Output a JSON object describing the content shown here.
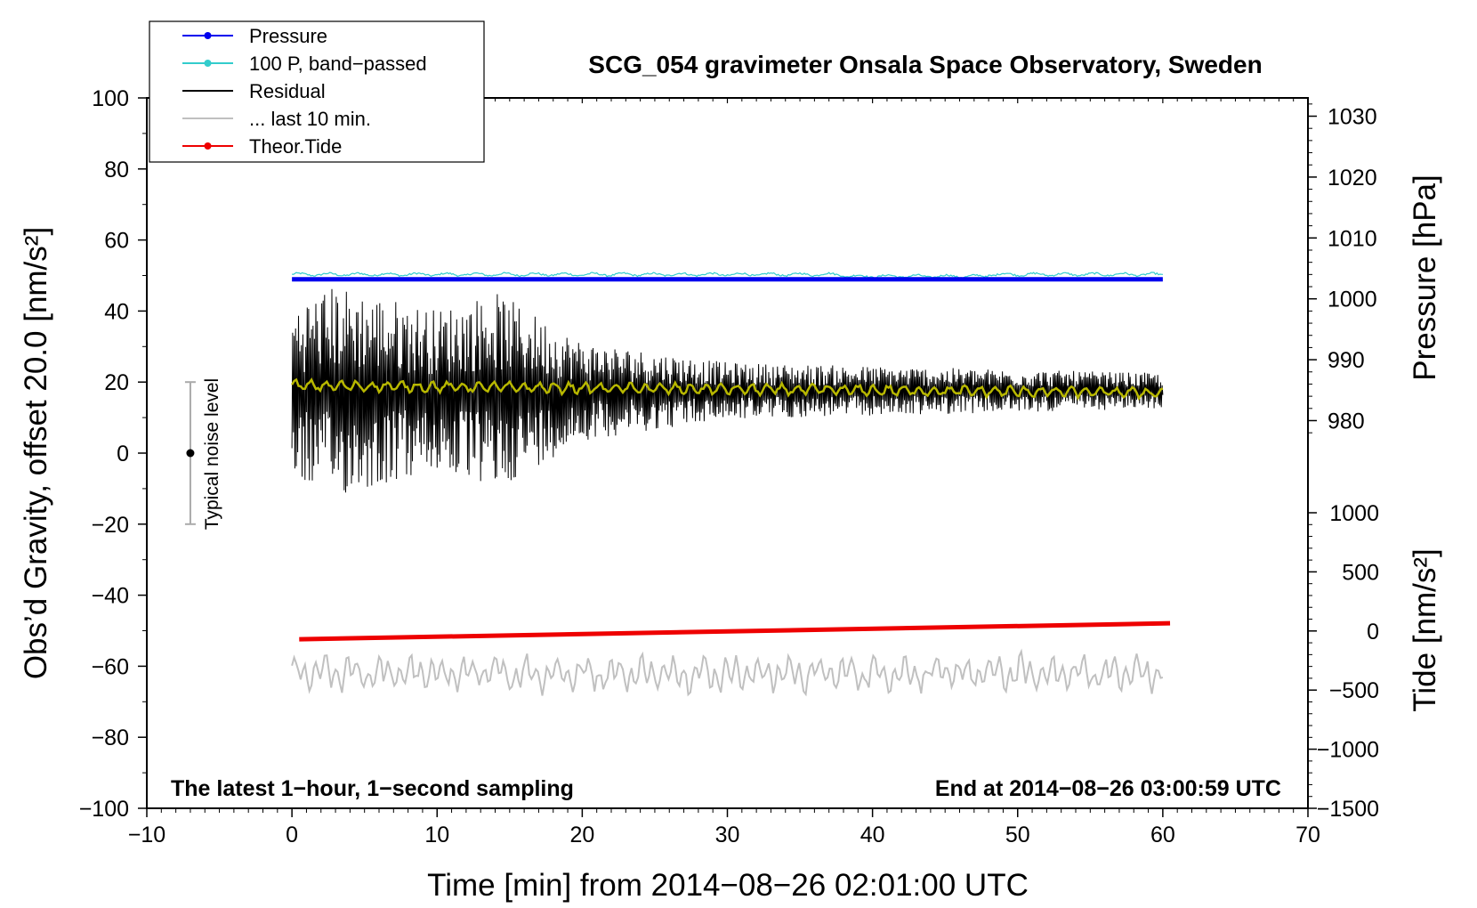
{
  "chart_data": {
    "type": "line",
    "title": "SCG_054 gravimeter Onsala Space Observatory, Sweden",
    "xlabel": "Time [min] from 2014−08−26 02:01:00 UTC",
    "ylabel_left": "Obs’d Gravity, offset 20.0 [nm/s²]",
    "ylabel_pressure": "Pressure [hPa]",
    "ylabel_tide": "Tide [nm/s²]",
    "xlim": [
      -10,
      70
    ],
    "ylim": [
      -100,
      100
    ],
    "pressure_axis_range": [
      977,
      1033
    ],
    "tide_axis_range": [
      -1500,
      1000
    ],
    "x_ticks": [
      "−10",
      "0",
      "10",
      "20",
      "30",
      "40",
      "50",
      "60",
      "70"
    ],
    "y_ticks": [
      "100",
      "80",
      "60",
      "40",
      "20",
      "0",
      "−20",
      "−40",
      "−60",
      "−80",
      "−100"
    ],
    "pressure_ticks": [
      "1030",
      "1020",
      "1010",
      "1000",
      "990",
      "980"
    ],
    "tide_ticks": [
      "1000",
      "500",
      "0",
      "−500",
      "−1000",
      "−1500"
    ],
    "note_left": "The latest 1−hour, 1−second sampling",
    "note_right": "End at 2014−08−26 03:00:59 UTC",
    "noise_label": "Typical noise level",
    "noise_bar": {
      "x": -7,
      "center": 0,
      "low": -20,
      "high": 20
    },
    "legend": [
      {
        "label": "Pressure",
        "color": "#0000ee",
        "marker": true
      },
      {
        "label": "100 P, band−passed",
        "color": "#33cccc",
        "marker": true
      },
      {
        "label": "Residual",
        "color": "#000000",
        "marker": false
      },
      {
        "label": "... last 10 min.",
        "color": "#c0c0c0",
        "marker": false
      },
      {
        "label": "Theor.Tide",
        "color": "#ee0000",
        "marker": true
      }
    ],
    "series": [
      {
        "name": "Pressure",
        "axis": "pressure_hPa",
        "color": "#0000ee",
        "x": [
          0,
          60
        ],
        "values": [
          1003.2,
          1003.2
        ]
      },
      {
        "name": "100 P, band−passed",
        "axis": "gravity_nm_s2",
        "color": "#33cccc",
        "x": [
          0,
          60
        ],
        "values": [
          50.3,
          50.3
        ]
      },
      {
        "name": "Theor.Tide",
        "axis": "tide_nm_s2",
        "color": "#ee0000",
        "x": [
          0.5,
          60.5
        ],
        "values": [
          -70,
          65
        ]
      },
      {
        "name": "Residual",
        "axis": "gravity_nm_s2",
        "color": "#000000",
        "x": [
          0,
          60
        ],
        "mean": 17.5,
        "amplitude_envelope": {
          "x": [
            0,
            3,
            10,
            14,
            20,
            30,
            40,
            50,
            60
          ],
          "values": [
            25,
            30,
            23,
            28,
            14,
            8,
            7,
            6,
            5
          ]
        }
      },
      {
        "name": "Residual smoothed",
        "axis": "gravity_nm_s2",
        "color": "#b8b800",
        "x": [
          0,
          60
        ],
        "values": [
          19,
          17
        ]
      },
      {
        "name": "... last 10 min.",
        "axis": "gravity_nm_s2",
        "color": "#c0c0c0",
        "x": [
          0,
          60
        ],
        "mean": -62,
        "amplitude_range": [
          -70,
          -56
        ]
      }
    ]
  }
}
